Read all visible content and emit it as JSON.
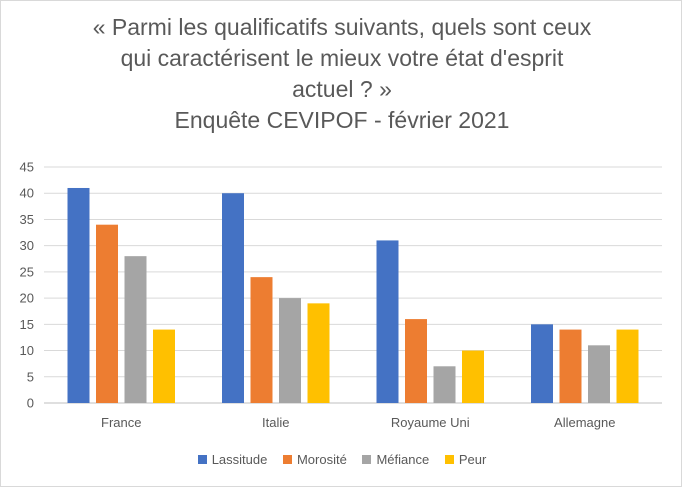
{
  "chart_data": {
    "type": "bar",
    "title_lines": [
      "« Parmi les qualificatifs suivants, quels sont ceux",
      "qui caractérisent le mieux votre état d'esprit",
      "actuel ? »",
      "Enquête CEVIPOF - février 2021"
    ],
    "categories": [
      "France",
      "Italie",
      "Royaume Uni",
      "Allemagne"
    ],
    "series": [
      {
        "name": "Lassitude",
        "color": "#4472C4",
        "values": [
          41,
          40,
          31,
          15
        ]
      },
      {
        "name": "Morosité",
        "color": "#ED7D31",
        "values": [
          34,
          24,
          16,
          14
        ]
      },
      {
        "name": "Méfiance",
        "color": "#A5A5A5",
        "values": [
          28,
          20,
          7,
          11
        ]
      },
      {
        "name": "Peur",
        "color": "#FFC000",
        "values": [
          14,
          19,
          10,
          14
        ]
      }
    ],
    "ylim": [
      0,
      45
    ],
    "yticks": [
      "0",
      "5",
      "10",
      "15",
      "20",
      "25",
      "30",
      "35",
      "40",
      "45"
    ],
    "grid": true,
    "legend_position": "bottom"
  }
}
